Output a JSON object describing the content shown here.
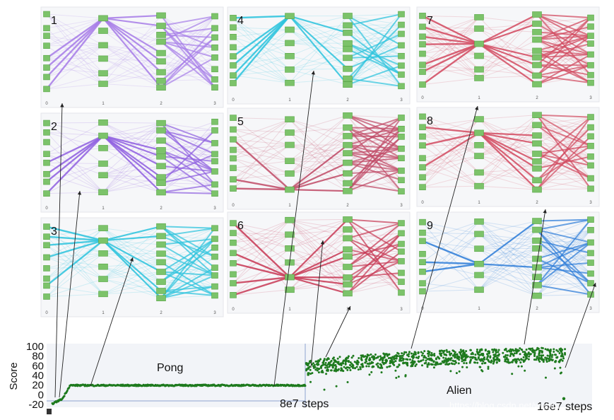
{
  "chart_data": [
    {
      "type": "network",
      "panels": [
        {
          "label": "1",
          "color": "#a77de8",
          "ticks": [
            "0",
            "1",
            "2",
            "3"
          ]
        },
        {
          "label": "2",
          "color": "#8f5fe0",
          "ticks": [
            "0",
            "1",
            "2",
            "3"
          ]
        },
        {
          "label": "3",
          "color": "#2cc3dd",
          "ticks": [
            "0",
            "1",
            "2",
            "3"
          ]
        },
        {
          "label": "4",
          "color": "#2cc3dd",
          "ticks": [
            "0",
            "1",
            "2",
            "3"
          ]
        },
        {
          "label": "5",
          "color": "#c04a66",
          "ticks": [
            "0",
            "1",
            "2",
            "3"
          ]
        },
        {
          "label": "6",
          "color": "#c83a56",
          "ticks": [
            "0",
            "1",
            "2",
            "3"
          ]
        },
        {
          "label": "7",
          "color": "#d24a60",
          "ticks": [
            "0",
            "1",
            "2",
            "3"
          ]
        },
        {
          "label": "8",
          "color": "#d24a60",
          "ticks": [
            "0",
            "1",
            "2",
            "3"
          ]
        },
        {
          "label": "9",
          "color": "#2f7ed8",
          "ticks": [
            "0",
            "1",
            "2",
            "3"
          ]
        }
      ]
    },
    {
      "type": "scatter",
      "ylabel": "Score",
      "yticks": [
        "100",
        "80",
        "60",
        "40",
        "20",
        "0",
        "-20"
      ],
      "ylim": [
        -20,
        100
      ],
      "annotations": {
        "pong": "Pong",
        "alien": "Alien",
        "mid": "8e7 steps",
        "end": "16e7 steps"
      },
      "series_color": "#1e7a1e"
    }
  ],
  "watermark": "https://blog.csdn.net/weixin_..."
}
